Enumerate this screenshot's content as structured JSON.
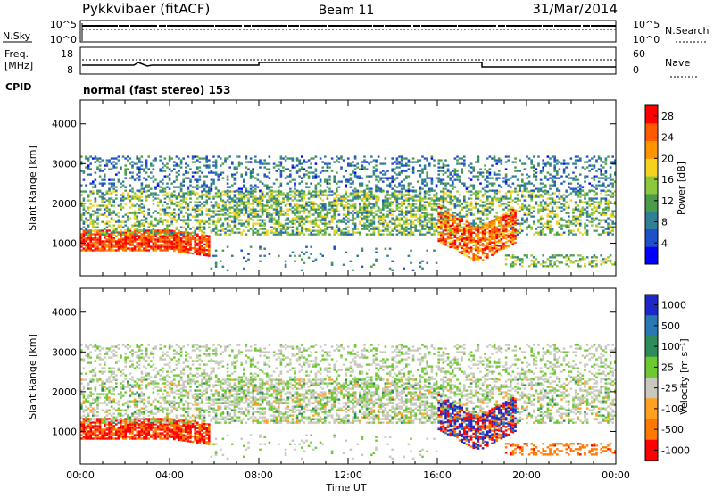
{
  "header": {
    "station": "Pykkvibaer (fitACF)",
    "beam": "Beam 11",
    "date": "31/Mar/2014"
  },
  "noise_panel": {
    "left_label": "N.Sky",
    "left_ticks": [
      "10^5",
      "10^0"
    ],
    "right_label": "N.Search",
    "right_ticks": [
      "10^5",
      "10^0"
    ]
  },
  "freq_panel": {
    "left_label_1": "Freq.",
    "left_label_2": "[MHz]",
    "left_ticks": [
      "18",
      "8"
    ],
    "right_label": "Nave",
    "right_ticks": [
      "60",
      "0"
    ],
    "cpid_label": "CPID",
    "mode_text": "normal (fast stereo) 153"
  },
  "chart_data": [
    {
      "type": "heatmap",
      "title": "",
      "xlabel": "",
      "ylabel": "Slant Range [km]",
      "xlim": [
        0,
        24
      ],
      "ylim": [
        180,
        4600
      ],
      "y_ticks": [
        "1000",
        "2000",
        "3000",
        "4000"
      ],
      "colorbar_label": "Power [dB]",
      "colorbar_ticks": [
        "4",
        "8",
        "12",
        "16",
        "20",
        "24",
        "28"
      ],
      "colorbar_range": [
        0,
        30
      ],
      "colorbar_colors": [
        "#0000ff",
        "#1e50c8",
        "#2f7f95",
        "#4a9c4a",
        "#8cc83c",
        "#f5d21e",
        "#ff9600",
        "#ff5a00",
        "#ff0000"
      ]
    },
    {
      "type": "heatmap",
      "title": "",
      "xlabel": "Time UT",
      "ylabel": "Slant Range [km]",
      "xlim": [
        0,
        24
      ],
      "ylim": [
        180,
        4600
      ],
      "x_ticks": [
        "00:00",
        "04:00",
        "08:00",
        "12:00",
        "16:00",
        "20:00",
        "00:00"
      ],
      "y_ticks": [
        "1000",
        "2000",
        "3000",
        "4000"
      ],
      "colorbar_label": "Velocity [m s⁻¹]",
      "colorbar_ticks": [
        "1000",
        "500",
        "100",
        "25",
        "-25",
        "-100",
        "-500",
        "-1000"
      ],
      "colorbar_colors": [
        "#1e28c8",
        "#2878b4",
        "#2d8c5a",
        "#6ec832",
        "#c8c8be",
        "#ffa01e",
        "#ff7800",
        "#ff0000"
      ]
    }
  ]
}
